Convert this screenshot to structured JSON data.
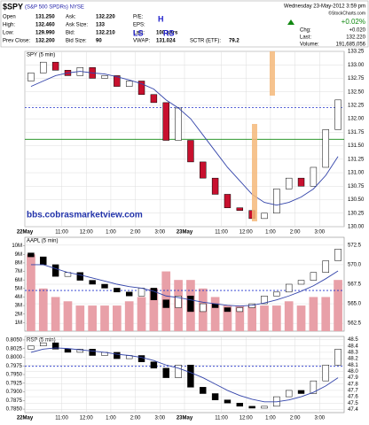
{
  "header": {
    "symbol": "$SPY",
    "description": "(S&P 500 SPDRs) NYSE",
    "date": "Wednesday 23-May-2012 3:59 pm",
    "credit": "©StockCharts.com",
    "rows": [
      [
        [
          "Open",
          "131.250"
        ],
        [
          "Ask:",
          "132.220"
        ],
        [
          "P/E:"
        ]
      ],
      [
        [
          "High:",
          "132.460"
        ],
        [
          "Ask Size:",
          "133"
        ],
        [
          "EPS:"
        ]
      ],
      [
        [
          "Low:",
          "129.990"
        ],
        [
          "Bid:",
          "132.210"
        ],
        [
          "Last:",
          "100 shrs"
        ]
      ],
      [
        [
          "Prev Close:",
          "132.200"
        ],
        [
          "Bid Size:",
          "90"
        ],
        [
          "VWAP:",
          "131.024"
        ],
        [
          "SCTR (ETF):",
          "79.2"
        ]
      ]
    ],
    "change": "+0.02%",
    "stats": [
      [
        "Chg:",
        "+0.020"
      ],
      [
        "Last:",
        "132.220"
      ],
      [
        "Volume:",
        "191,685,056"
      ]
    ]
  },
  "chart_data": [
    {
      "type": "candlestick",
      "title": "SPY (5 min)",
      "up_color": "#ffffff",
      "down_color": "#c8102e",
      "ma_color": "#3344aa",
      "annotations": [
        "LS",
        "H",
        "RS",
        "bbs.cobrasmarketview.com"
      ],
      "xlim": [
        0,
        26
      ],
      "xticks": [
        {
          "value": 0,
          "label": "22May"
        },
        {
          "value": 3,
          "label": "11:00"
        },
        {
          "value": 5,
          "label": "12:00"
        },
        {
          "value": 7,
          "label": "1:00"
        },
        {
          "value": 9,
          "label": "2:00"
        },
        {
          "value": 11,
          "label": "3:00"
        },
        {
          "value": 13,
          "label": "23May"
        },
        {
          "value": 16,
          "label": "11:00"
        },
        {
          "value": 18,
          "label": "12:00"
        },
        {
          "value": 20,
          "label": "1:00"
        },
        {
          "value": 22,
          "label": "2:00"
        },
        {
          "value": 24,
          "label": "3:00"
        }
      ],
      "ylim": [
        130,
        133.25
      ],
      "yticks": [
        {
          "value": 130,
          "label": "130.00"
        },
        130.25,
        {
          "value": 130.5,
          "label": "130.50"
        },
        130.75,
        {
          "value": 131,
          "label": "131.00"
        },
        131.25,
        {
          "value": 131.5,
          "label": "131.50"
        },
        131.75,
        {
          "value": 132,
          "label": "132.00"
        },
        132.25,
        {
          "value": 132.5,
          "label": "132.50"
        },
        132.75,
        {
          "value": 133,
          "label": "133.00"
        },
        133.25
      ],
      "reference_lines": [
        {
          "value": 132.21,
          "color": "#2233cc",
          "dash": "2,2"
        },
        {
          "value": 131.62,
          "color": "#118811"
        }
      ],
      "open": [
        132.7,
        132.85,
        133.05,
        132.9,
        132.8,
        132.95,
        132.75,
        132.8,
        132.6,
        132.7,
        132.45,
        132.3,
        131.6,
        131.6,
        131.2,
        130.9,
        130.6,
        130.35,
        130.3,
        130.15,
        130.25,
        130.7,
        130.9,
        130.75,
        131.1,
        131.8
      ],
      "values": [
        132.85,
        133.05,
        132.9,
        132.8,
        132.95,
        132.75,
        132.8,
        132.6,
        132.7,
        132.45,
        132.3,
        131.6,
        132.2,
        131.2,
        130.9,
        130.6,
        130.35,
        130.3,
        130.15,
        130.25,
        130.7,
        130.9,
        130.75,
        131.1,
        131.8,
        132.35
      ],
      "ma": [
        132.6,
        132.7,
        132.8,
        132.85,
        132.88,
        132.85,
        132.83,
        132.78,
        132.72,
        132.65,
        132.55,
        132.35,
        132.2,
        132,
        131.7,
        131.4,
        131.1,
        130.85,
        130.6,
        130.45,
        130.4,
        130.45,
        130.55,
        130.7,
        130.95,
        131.3
      ]
    },
    {
      "type": "candlestick",
      "title": "AAPL (5 min)",
      "up_color": "#ffffff",
      "down_color": "#000000",
      "ma_color": "#3344aa",
      "volume_color": "#e8a0a8",
      "xlim": [
        0,
        26
      ],
      "ylim": [
        561.5,
        573.5
      ],
      "yticks": [
        {
          "value": 562.5,
          "label": "562.5"
        },
        {
          "value": 565,
          "label": "565.0"
        },
        {
          "value": 567.5,
          "label": "567.5"
        },
        {
          "value": 570,
          "label": "570.0"
        },
        {
          "value": 572.5,
          "label": "572.5"
        }
      ],
      "reference_lines": [
        {
          "value": 566.7,
          "color": "#2233cc",
          "dash": "2,2"
        }
      ],
      "volume_ylim": [
        0,
        11
      ],
      "volume_ticks": [
        {
          "value": 1,
          "label": "1M"
        },
        {
          "value": 2,
          "label": "2M"
        },
        {
          "value": 3,
          "label": "3M"
        },
        {
          "value": 4,
          "label": "4M"
        },
        {
          "value": 5,
          "label": "5M"
        },
        {
          "value": 6,
          "label": "6M"
        },
        {
          "value": 7,
          "label": "7M"
        },
        {
          "value": 8,
          "label": "8M"
        },
        {
          "value": 9,
          "label": "9M"
        },
        {
          "value": 10,
          "label": "10M"
        }
      ],
      "volume": [
        9,
        5,
        4,
        3.5,
        3,
        3,
        3,
        3,
        3.5,
        4,
        5,
        7,
        6,
        6,
        5,
        4,
        3,
        3,
        3,
        3,
        3,
        3.5,
        3,
        4,
        4,
        6
      ],
      "open": [
        571.5,
        571,
        570,
        568.5,
        569,
        568,
        567.5,
        567,
        566.5,
        566,
        567,
        565.5,
        564.5,
        566,
        564,
        565,
        564.5,
        564,
        564.5,
        565,
        566,
        566.5,
        567.5,
        568,
        569,
        570.5
      ],
      "values": [
        571,
        570,
        568.5,
        569,
        568,
        567.5,
        567,
        566.5,
        566,
        567,
        565.5,
        564.5,
        566,
        564,
        565,
        564.5,
        564,
        564.5,
        565,
        566,
        566.5,
        567.5,
        568,
        569,
        570.5,
        572
      ],
      "ma": [
        570,
        570,
        569.5,
        569,
        568.7,
        568.3,
        567.9,
        567.5,
        567.2,
        567,
        566.6,
        566,
        565.8,
        565.5,
        565.2,
        565,
        564.8,
        564.7,
        564.8,
        565.1,
        565.5,
        566,
        566.6,
        567.3,
        568.2,
        569.2
      ]
    },
    {
      "type": "candlestick",
      "title": "RSP (5 min)",
      "up_color": "#ffffff",
      "down_color": "#000000",
      "ma_color": "#3344aa",
      "xlim": [
        0,
        26
      ],
      "xticks": [
        {
          "value": 0,
          "label": "22May"
        },
        {
          "value": 3,
          "label": "11:00"
        },
        {
          "value": 5,
          "label": "12:00"
        },
        {
          "value": 7,
          "label": "1:00"
        },
        {
          "value": 9,
          "label": "2:00"
        },
        {
          "value": 11,
          "label": "3:00"
        },
        {
          "value": 13,
          "label": "23May"
        },
        {
          "value": 16,
          "label": "11:00"
        },
        {
          "value": 18,
          "label": "12:00"
        },
        {
          "value": 20,
          "label": "1:00"
        },
        {
          "value": 22,
          "label": "2:00"
        },
        {
          "value": 24,
          "label": "3:00"
        }
      ],
      "ylim": [
        47.35,
        48.55
      ],
      "yticks": [
        47.4,
        47.5,
        47.6,
        47.7,
        47.8,
        47.9,
        {
          "value": 48,
          "label": "48.0"
        },
        48.1,
        48.2,
        48.3,
        48.4,
        48.5
      ],
      "left_ylim": [
        0.784,
        0.806
      ],
      "left_yticks": [
        {
          "value": 0.785,
          "label": "0.7850"
        },
        {
          "value": 0.7875,
          "label": "0.7875"
        },
        {
          "value": 0.79,
          "label": "0.7900"
        },
        {
          "value": 0.7925,
          "label": "0.7925"
        },
        {
          "value": 0.795,
          "label": "0.7950"
        },
        {
          "value": 0.7975,
          "label": "0.7975"
        },
        {
          "value": 0.8,
          "label": "0.8000"
        },
        {
          "value": 0.8025,
          "label": "0.8025"
        },
        {
          "value": 0.805,
          "label": "0.8050"
        }
      ],
      "reference_lines": [
        {
          "value": 48.08,
          "color": "#2233cc",
          "dash": "2,2"
        }
      ],
      "open": [
        48.35,
        48.4,
        48.45,
        48.35,
        48.3,
        48.35,
        48.25,
        48.3,
        48.2,
        48.25,
        48.15,
        48.05,
        47.9,
        48.1,
        47.75,
        47.65,
        47.55,
        47.5,
        47.45,
        47.42,
        47.45,
        47.6,
        47.7,
        47.65,
        47.85,
        48.1
      ],
      "values": [
        48.4,
        48.45,
        48.35,
        48.3,
        48.35,
        48.25,
        48.3,
        48.2,
        48.25,
        48.15,
        48.05,
        47.9,
        48.1,
        47.75,
        47.65,
        47.55,
        47.5,
        47.45,
        47.42,
        47.45,
        47.6,
        47.7,
        47.65,
        47.85,
        48.1,
        48.35
      ],
      "ma": [
        48.3,
        48.35,
        48.37,
        48.36,
        48.34,
        48.32,
        48.3,
        48.27,
        48.25,
        48.22,
        48.17,
        48.1,
        48.05,
        47.98,
        47.9,
        47.8,
        47.7,
        47.62,
        47.56,
        47.52,
        47.52,
        47.55,
        47.6,
        47.67,
        47.77,
        47.9
      ]
    }
  ]
}
